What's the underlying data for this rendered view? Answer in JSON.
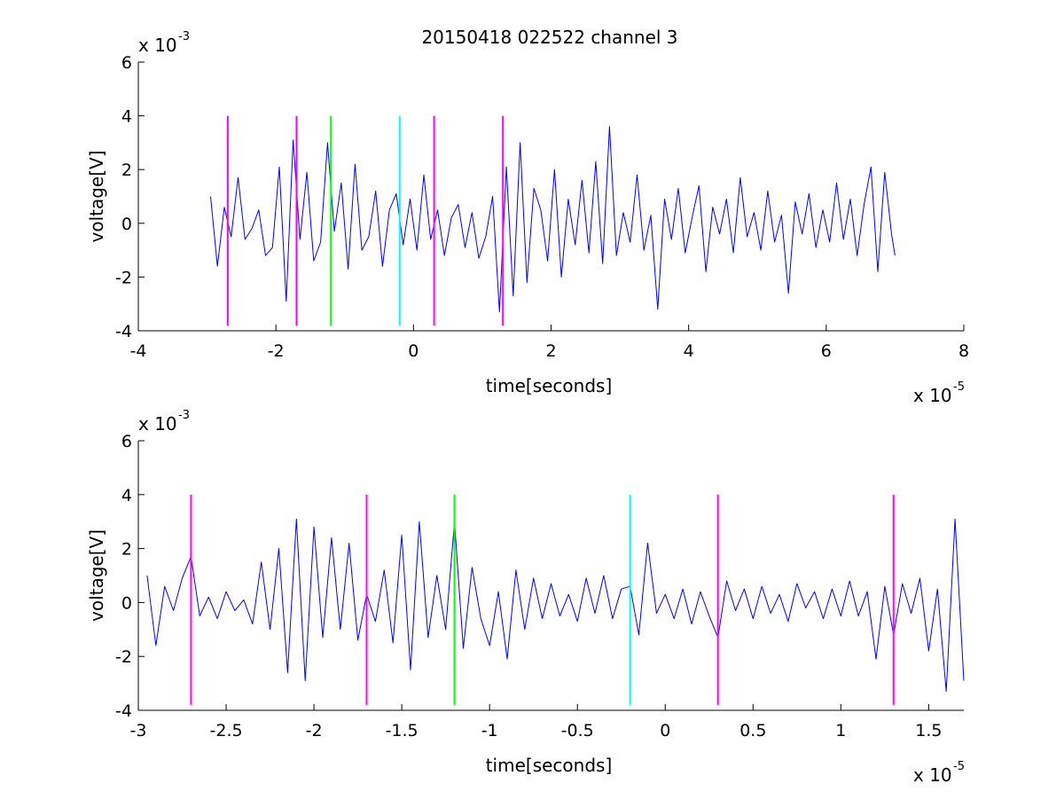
{
  "figure_title": "20150418 022522 channel 3",
  "chart_data": [
    {
      "type": "line",
      "xlabel": "time[seconds]",
      "ylabel": "voltage[V]",
      "x_exponent": "x 10",
      "x_exponent_power": "-5",
      "y_exponent": "x 10",
      "y_exponent_power": "-3",
      "xlim": [
        -4,
        8
      ],
      "ylim": [
        -4,
        6
      ],
      "xticks": [
        -4,
        -2,
        0,
        2,
        4,
        6,
        8
      ],
      "xtick_labels": [
        "-4",
        "-2",
        "0",
        "2",
        "4",
        "6",
        "8"
      ],
      "yticks": [
        -4,
        -2,
        0,
        2,
        4,
        6
      ],
      "ytick_labels": [
        "-4",
        "-2",
        "0",
        "2",
        "4",
        "6"
      ],
      "series": [
        {
          "color": "#0000ff",
          "x": [
            -2.95,
            -2.85,
            -2.75,
            -2.65,
            -2.55,
            -2.45,
            -2.35,
            -2.25,
            -2.15,
            -2.05,
            -1.95,
            -1.85,
            -1.75,
            -1.65,
            -1.55,
            -1.45,
            -1.35,
            -1.25,
            -1.15,
            -1.05,
            -0.95,
            -0.85,
            -0.75,
            -0.65,
            -0.55,
            -0.45,
            -0.35,
            -0.25,
            -0.15,
            -0.05,
            0.05,
            0.15,
            0.25,
            0.35,
            0.45,
            0.55,
            0.65,
            0.75,
            0.85,
            0.95,
            1.05,
            1.15,
            1.25,
            1.35,
            1.45,
            1.55,
            1.65,
            1.75,
            1.85,
            1.95,
            2.05,
            2.15,
            2.25,
            2.35,
            2.45,
            2.55,
            2.65,
            2.75,
            2.85,
            2.95,
            3.05,
            3.15,
            3.25,
            3.35,
            3.45,
            3.55,
            3.65,
            3.75,
            3.85,
            3.95,
            4.05,
            4.15,
            4.25,
            4.35,
            4.45,
            4.55,
            4.65,
            4.75,
            4.85,
            4.95,
            5.05,
            5.15,
            5.25,
            5.35,
            5.45,
            5.55,
            5.65,
            5.75,
            5.85,
            5.95,
            6.05,
            6.15,
            6.25,
            6.35,
            6.45,
            6.55,
            6.65,
            6.75,
            6.85,
            6.95,
            7.0
          ],
          "y": [
            1.0,
            -1.6,
            0.6,
            -0.5,
            1.7,
            -0.6,
            -0.2,
            0.5,
            -1.2,
            -0.9,
            2.1,
            -2.9,
            3.1,
            -0.6,
            1.9,
            -1.4,
            -0.7,
            3.0,
            -0.3,
            1.5,
            -1.7,
            2.2,
            -1.0,
            -0.5,
            1.2,
            -1.6,
            0.5,
            1.1,
            -0.8,
            0.9,
            -1.0,
            1.8,
            -0.6,
            0.5,
            -1.2,
            0.2,
            0.7,
            -0.9,
            0.4,
            -1.3,
            -0.5,
            1.0,
            -3.3,
            2.1,
            -2.7,
            3.0,
            -2.2,
            1.3,
            0.5,
            -1.4,
            2.0,
            -2.0,
            0.9,
            -0.8,
            1.6,
            -1.1,
            2.3,
            -1.5,
            3.6,
            -1.2,
            0.4,
            -0.7,
            1.8,
            -1.0,
            0.3,
            -3.2,
            0.9,
            -0.6,
            1.3,
            -1.1,
            0.2,
            1.4,
            -1.8,
            0.6,
            -0.4,
            0.9,
            -1.1,
            1.7,
            -0.5,
            0.4,
            -1.0,
            1.2,
            -0.7,
            0.3,
            -2.6,
            0.8,
            -0.4,
            1.1,
            -0.9,
            0.5,
            -0.7,
            1.5,
            -0.6,
            0.9,
            -1.2,
            0.7,
            2.1,
            -1.8,
            1.9,
            -0.4,
            -1.2
          ]
        }
      ],
      "vertical_markers": [
        {
          "x": -2.7,
          "color": "#ff00ff",
          "y0": -3.8,
          "y1": 4.0
        },
        {
          "x": -1.7,
          "color": "#ff00ff",
          "y0": -3.8,
          "y1": 4.0
        },
        {
          "x": -1.2,
          "color": "#00ff00",
          "y0": -3.8,
          "y1": 4.0
        },
        {
          "x": -0.2,
          "color": "#00ffff",
          "y0": -3.8,
          "y1": 4.0
        },
        {
          "x": 0.3,
          "color": "#ff00ff",
          "y0": -3.8,
          "y1": 4.0
        },
        {
          "x": 1.3,
          "color": "#ff00ff",
          "y0": -3.8,
          "y1": 4.0
        }
      ]
    },
    {
      "type": "line",
      "xlabel": "time[seconds]",
      "ylabel": "voltage[V]",
      "x_exponent": "x 10",
      "x_exponent_power": "-5",
      "y_exponent": "x 10",
      "y_exponent_power": "-3",
      "xlim": [
        -3.0,
        1.7
      ],
      "ylim": [
        -4,
        6
      ],
      "xticks": [
        -3,
        -2.5,
        -2,
        -1.5,
        -1,
        -0.5,
        0,
        0.5,
        1,
        1.5
      ],
      "xtick_labels": [
        "-3",
        "-2.5",
        "-2",
        "-1.5",
        "-1",
        "-0.5",
        "0",
        "0.5",
        "1",
        "1.5"
      ],
      "yticks": [
        -4,
        -2,
        0,
        2,
        4,
        6
      ],
      "ytick_labels": [
        "-4",
        "-2",
        "0",
        "2",
        "4",
        "6"
      ],
      "series": [
        {
          "color": "#0000ff",
          "x": [
            -2.95,
            -2.9,
            -2.85,
            -2.8,
            -2.75,
            -2.7,
            -2.65,
            -2.6,
            -2.55,
            -2.5,
            -2.45,
            -2.4,
            -2.35,
            -2.3,
            -2.25,
            -2.2,
            -2.15,
            -2.1,
            -2.05,
            -2.0,
            -1.95,
            -1.9,
            -1.85,
            -1.8,
            -1.75,
            -1.7,
            -1.65,
            -1.6,
            -1.55,
            -1.5,
            -1.45,
            -1.4,
            -1.35,
            -1.3,
            -1.25,
            -1.2,
            -1.15,
            -1.1,
            -1.05,
            -1.0,
            -0.95,
            -0.9,
            -0.85,
            -0.8,
            -0.75,
            -0.7,
            -0.65,
            -0.6,
            -0.55,
            -0.5,
            -0.45,
            -0.4,
            -0.35,
            -0.3,
            -0.25,
            -0.2,
            -0.15,
            -0.1,
            -0.05,
            0.0,
            0.05,
            0.1,
            0.15,
            0.2,
            0.25,
            0.3,
            0.35,
            0.4,
            0.45,
            0.5,
            0.55,
            0.6,
            0.65,
            0.7,
            0.75,
            0.8,
            0.85,
            0.9,
            0.95,
            1.0,
            1.05,
            1.1,
            1.15,
            1.2,
            1.25,
            1.3,
            1.35,
            1.4,
            1.45,
            1.5,
            1.55,
            1.6,
            1.65,
            1.7
          ],
          "y": [
            1.0,
            -1.6,
            0.6,
            -0.3,
            0.9,
            1.7,
            -0.5,
            0.2,
            -0.6,
            0.4,
            -0.3,
            0.1,
            -0.8,
            1.5,
            -1.0,
            2.0,
            -2.6,
            3.1,
            -2.9,
            2.8,
            -1.3,
            2.4,
            -1.0,
            2.2,
            -1.4,
            0.3,
            -0.7,
            1.2,
            -1.5,
            2.5,
            -2.5,
            3.0,
            -1.3,
            1.0,
            -1.0,
            3.0,
            -1.7,
            1.3,
            -0.6,
            -1.6,
            0.4,
            -2.1,
            1.2,
            -1.0,
            0.9,
            -0.6,
            0.7,
            -0.5,
            0.3,
            -0.7,
            0.9,
            -0.4,
            1.0,
            -0.6,
            0.5,
            0.6,
            -1.2,
            2.2,
            -0.4,
            0.3,
            -0.6,
            0.5,
            -0.8,
            0.4,
            -0.5,
            -1.3,
            0.8,
            -0.3,
            0.5,
            -0.6,
            0.6,
            -0.4,
            0.3,
            -0.7,
            0.7,
            -0.2,
            0.4,
            -0.6,
            0.5,
            -0.5,
            0.8,
            -0.5,
            0.4,
            -2.1,
            0.6,
            -1.2,
            0.7,
            -0.4,
            0.9,
            -1.8,
            0.5,
            -3.3,
            3.1,
            -2.9
          ]
        }
      ],
      "vertical_markers": [
        {
          "x": -2.7,
          "color": "#ff00ff",
          "y0": -3.8,
          "y1": 4.0
        },
        {
          "x": -1.7,
          "color": "#ff00ff",
          "y0": -3.8,
          "y1": 4.0
        },
        {
          "x": -1.2,
          "color": "#00ff00",
          "y0": -3.8,
          "y1": 4.0
        },
        {
          "x": -0.2,
          "color": "#00ffff",
          "y0": -3.8,
          "y1": 4.0
        },
        {
          "x": 0.3,
          "color": "#ff00ff",
          "y0": -3.8,
          "y1": 4.0
        },
        {
          "x": 1.3,
          "color": "#ff00ff",
          "y0": -3.8,
          "y1": 4.0
        }
      ]
    }
  ]
}
